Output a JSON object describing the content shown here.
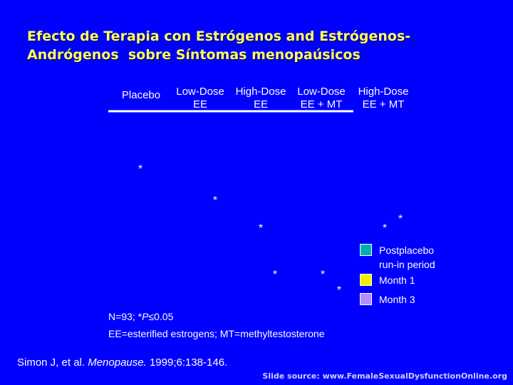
{
  "title": {
    "line1": "Efecto de Terapia con Estrógenos and Estrógenos-",
    "line2": "Andrógenos  sobre Síntomas menopaúsicos"
  },
  "chart_data": {
    "type": "bar",
    "categories": [
      {
        "line1": "Placebo",
        "line2": ""
      },
      {
        "line1": "Low-Dose",
        "line2": "EE"
      },
      {
        "line1": "High-Dose",
        "line2": "EE"
      },
      {
        "line1": "Low-Dose",
        "line2": "EE + MT"
      },
      {
        "line1": "High-Dose",
        "line2": "EE + MT"
      }
    ],
    "series": [
      {
        "name": "Postplacebo run-in period",
        "color": "#00b0b0"
      },
      {
        "name": "Month 1",
        "color": "#f0f000"
      },
      {
        "name": "Month 3",
        "color": "#b090ff"
      }
    ],
    "significance_marks": [
      {
        "category": 0,
        "series": 2,
        "label": "*"
      },
      {
        "category": 1,
        "series": 2,
        "label": "*"
      },
      {
        "category": 2,
        "series": 1,
        "label": "*"
      },
      {
        "category": 2,
        "series": 2,
        "label": "*"
      },
      {
        "category": 3,
        "series": 1,
        "label": "*"
      },
      {
        "category": 3,
        "series": 2,
        "label": "*"
      },
      {
        "category": 4,
        "series": 1,
        "label": "*"
      },
      {
        "category": 4,
        "series": 2,
        "label": "*"
      }
    ],
    "axis_color": "#ffffff"
  },
  "legend": [
    {
      "label": "Postplacebo\nrun-in period",
      "color": "#00b0b0"
    },
    {
      "label": "Month 1",
      "color": "#f0f000"
    },
    {
      "label": "Month 3",
      "color": "#b090ff"
    }
  ],
  "footnotes": {
    "line1_prefix": "N=93; *",
    "line1_italic": "P",
    "line1_suffix": "≤0.05",
    "line2": "EE=esterified estrogens; MT=methyltestosterone"
  },
  "citation": {
    "authors": "Simon J, et al. ",
    "journal": "Menopause.",
    "details": " 1999;6:138-146."
  },
  "source": "Slide source: www.FemaleSexualDysfunctionOnline.org"
}
